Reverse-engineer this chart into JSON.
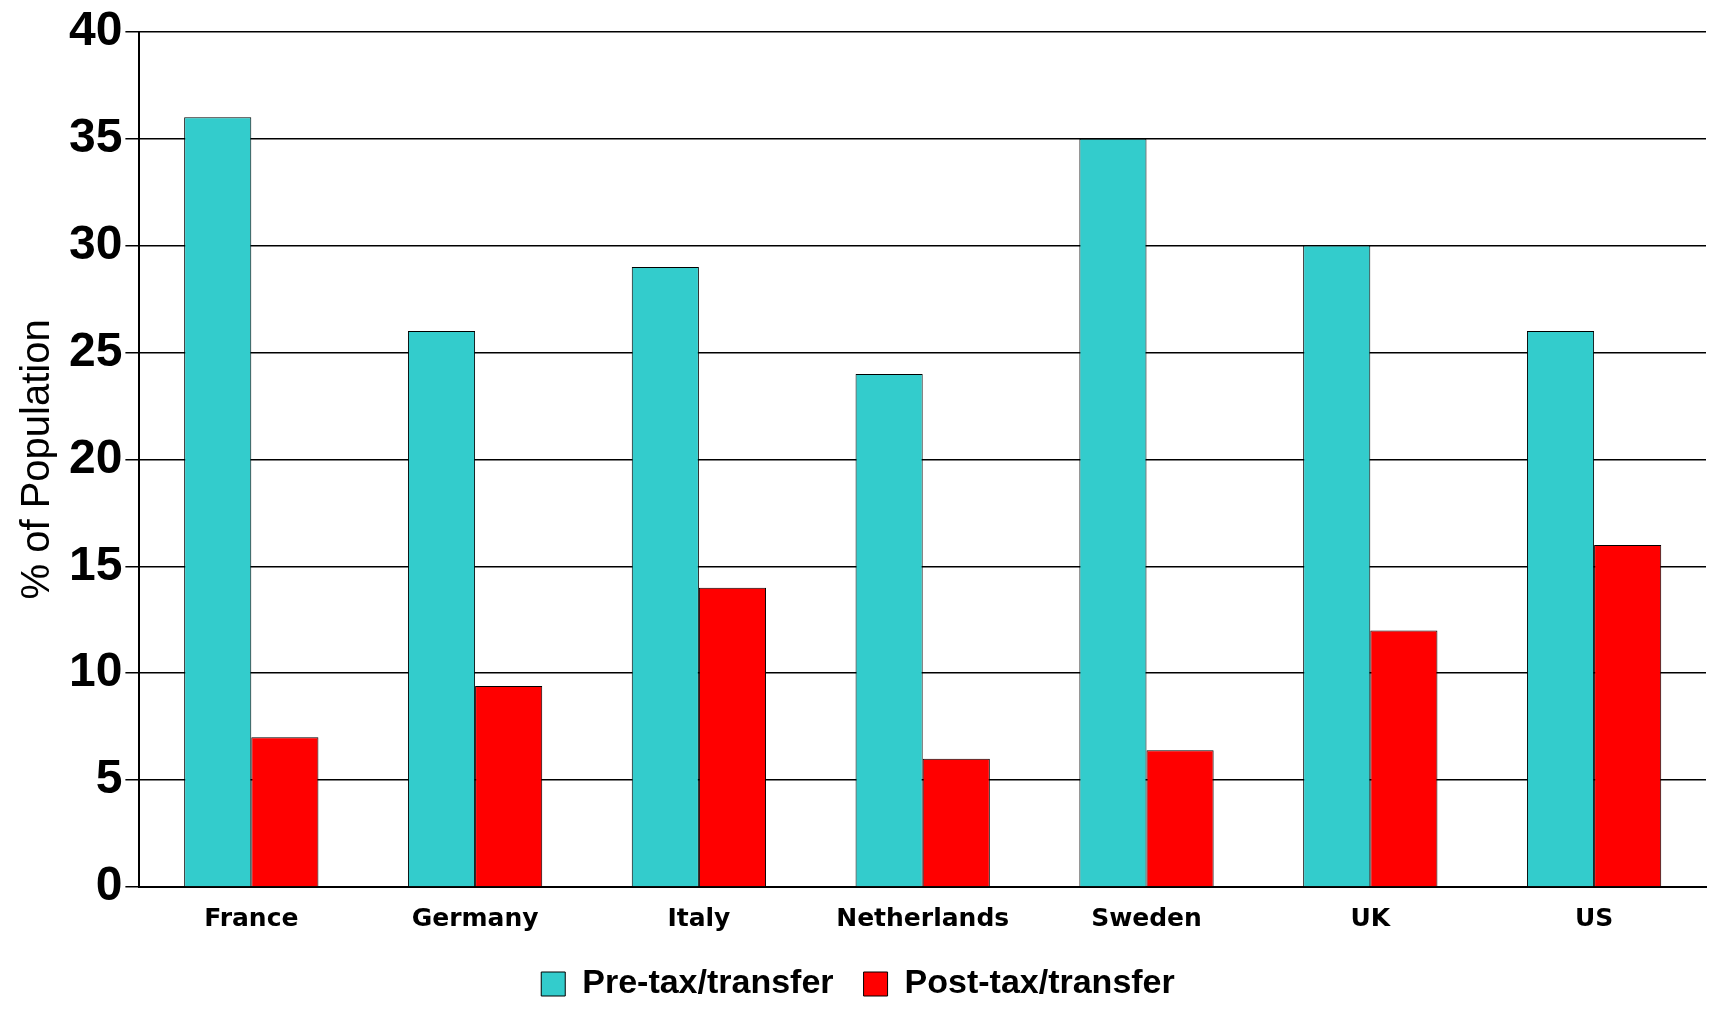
{
  "chart_data": {
    "type": "bar",
    "ylabel": "% of Population",
    "categories": [
      "France",
      "Germany",
      "Italy",
      "Netherlands",
      "Sweden",
      "UK",
      "US"
    ],
    "series": [
      {
        "name": "Pre-tax/transfer",
        "color": "#33cccc",
        "values": [
          36,
          26,
          29,
          24,
          35,
          30,
          26
        ]
      },
      {
        "name": "Post-tax/transfer",
        "color": "#ff0000",
        "values": [
          7,
          9.4,
          14,
          6,
          6.4,
          12,
          16
        ]
      }
    ],
    "ylim": [
      0,
      40
    ],
    "yticks": [
      0,
      5,
      10,
      15,
      20,
      25,
      30,
      35,
      40
    ],
    "grid": "y",
    "legend": "bottom"
  }
}
